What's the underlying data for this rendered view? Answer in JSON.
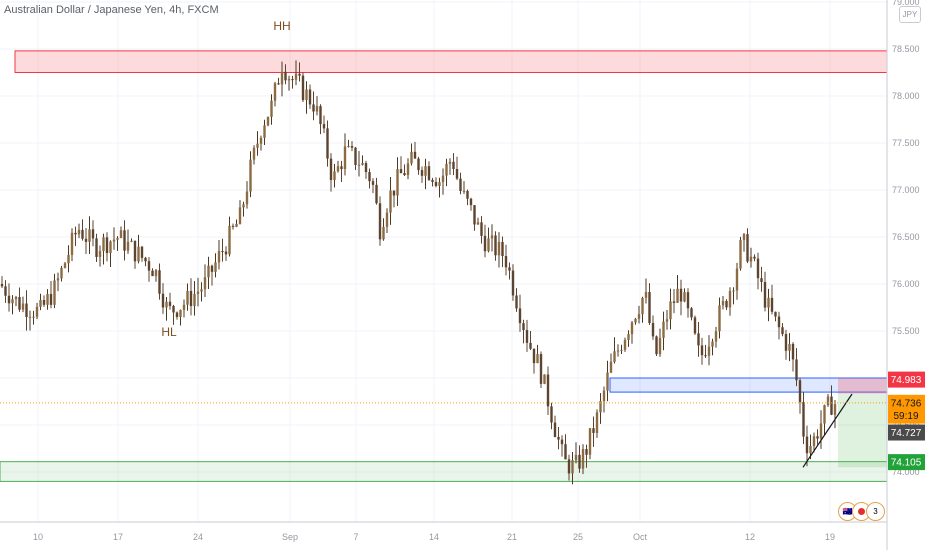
{
  "window": {
    "title": "Australian Dollar / Japanese Yen, 4h, FXCM",
    "currency": "JPY"
  },
  "colors": {
    "up": "#4a3a24",
    "down": "#5c4430",
    "grid": "#f0f3fa",
    "zone_red": "#f23645",
    "zone_blue": "#2962ff",
    "zone_green": "#4caf50",
    "label_text": "#7a4f1d"
  },
  "annotations": {
    "hh": "HH",
    "hl": "HL"
  },
  "price_labels": {
    "p1": "74.983",
    "p2": "74.736",
    "countdown": "59:19",
    "p3": "74.727",
    "p4": "74.105"
  },
  "badges": {
    "count": "3"
  },
  "chart_data": {
    "type": "candlestick",
    "title": "Australian Dollar / Japanese Yen, 4h, FXCM",
    "ylim": [
      73.4,
      79.0
    ],
    "y_ticks": [
      "79.000",
      "78.500",
      "78.000",
      "77.500",
      "77.000",
      "76.500",
      "76.000",
      "75.500",
      "75.000",
      "74.500",
      "74.000"
    ],
    "x_ticks": [
      "10",
      "17",
      "24",
      "Sep",
      "7",
      "14",
      "21",
      "25",
      "Oct",
      "12",
      "19"
    ],
    "close_path": [
      [
        0,
        76.0
      ],
      [
        18,
        75.8
      ],
      [
        40,
        75.7
      ],
      [
        55,
        75.95
      ],
      [
        78,
        76.6
      ],
      [
        95,
        76.4
      ],
      [
        118,
        76.5
      ],
      [
        140,
        76.3
      ],
      [
        155,
        76.15
      ],
      [
        168,
        75.7
      ],
      [
        185,
        75.8
      ],
      [
        205,
        76.0
      ],
      [
        222,
        76.35
      ],
      [
        240,
        76.7
      ],
      [
        250,
        77.2
      ],
      [
        262,
        77.7
      ],
      [
        272,
        77.9
      ],
      [
        282,
        78.35
      ],
      [
        290,
        78.2
      ],
      [
        300,
        78.1
      ],
      [
        315,
        77.9
      ],
      [
        325,
        77.5
      ],
      [
        333,
        77.1
      ],
      [
        345,
        77.4
      ],
      [
        360,
        77.3
      ],
      [
        372,
        77.1
      ],
      [
        380,
        76.6
      ],
      [
        388,
        76.9
      ],
      [
        400,
        77.15
      ],
      [
        412,
        77.3
      ],
      [
        425,
        77.25
      ],
      [
        440,
        77.1
      ],
      [
        452,
        77.35
      ],
      [
        460,
        77.0
      ],
      [
        470,
        76.8
      ],
      [
        482,
        76.5
      ],
      [
        492,
        76.4
      ],
      [
        505,
        76.3
      ],
      [
        515,
        75.9
      ],
      [
        528,
        75.4
      ],
      [
        540,
        75.1
      ],
      [
        552,
        74.6
      ],
      [
        564,
        74.1
      ],
      [
        575,
        74.05
      ],
      [
        585,
        74.2
      ],
      [
        598,
        74.6
      ],
      [
        610,
        75.1
      ],
      [
        622,
        75.4
      ],
      [
        635,
        75.7
      ],
      [
        645,
        75.9
      ],
      [
        655,
        75.2
      ],
      [
        668,
        75.7
      ],
      [
        680,
        75.95
      ],
      [
        690,
        75.6
      ],
      [
        700,
        75.2
      ],
      [
        712,
        75.5
      ],
      [
        725,
        75.8
      ],
      [
        735,
        76.1
      ],
      [
        742,
        76.45
      ],
      [
        750,
        76.3
      ],
      [
        760,
        76.0
      ],
      [
        770,
        75.7
      ],
      [
        780,
        75.5
      ],
      [
        790,
        75.3
      ],
      [
        798,
        74.9
      ],
      [
        805,
        74.3
      ],
      [
        812,
        74.3
      ],
      [
        820,
        74.5
      ],
      [
        830,
        74.73
      ],
      [
        836,
        74.73
      ]
    ],
    "zones": [
      {
        "color": "red",
        "from": 78.25,
        "to": 78.48
      },
      {
        "color": "blue",
        "from": 74.85,
        "to": 75.0
      },
      {
        "color": "green",
        "from": 73.9,
        "to": 74.11
      }
    ],
    "current_price": 74.736
  }
}
